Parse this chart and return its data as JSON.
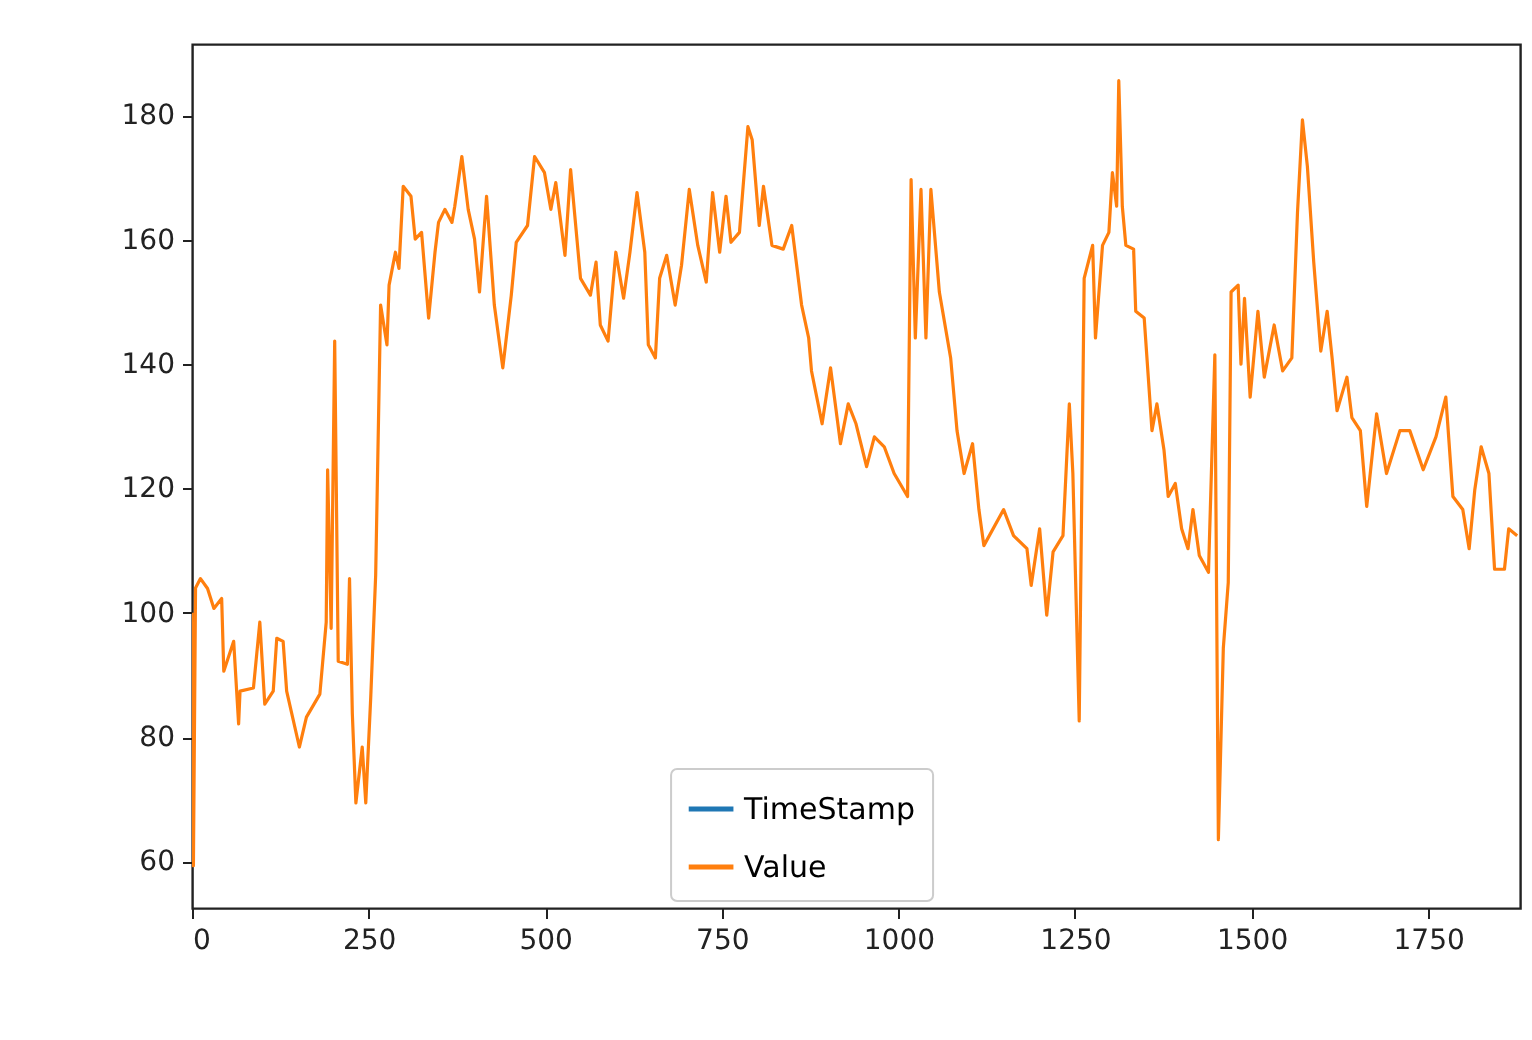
{
  "chart_data": {
    "type": "line",
    "legend": "bottom",
    "xlim": [
      0,
      1880
    ],
    "ylim": [
      52.5,
      191.5
    ],
    "xticks": [
      0,
      250,
      500,
      750,
      1000,
      1250,
      1500,
      1750
    ],
    "yticks": [
      60,
      80,
      100,
      120,
      140,
      160,
      180
    ],
    "series": [
      {
        "name": "TimeStamp",
        "color": "#1f77b4"
      },
      {
        "name": "Value",
        "color": "#ff7f0e",
        "x": [
          0,
          2,
          5,
          12,
          22,
          31,
          42,
          45,
          59,
          66,
          68,
          87,
          96,
          103,
          115,
          120,
          129,
          134,
          152,
          162,
          181,
          190,
          192,
          197,
          202,
          207,
          220,
          223,
          227,
          232,
          241,
          246,
          253,
          260,
          267,
          276,
          279,
          288,
          293,
          299,
          310,
          316,
          325,
          335,
          344,
          349,
          358,
          368,
          372,
          382,
          391,
          400,
          407,
          417,
          428,
          440,
          452,
          459,
          475,
          485,
          499,
          508,
          515,
          528,
          536,
          550,
          564,
          572,
          578,
          589,
          600,
          611,
          620,
          630,
          641,
          646,
          656,
          662,
          672,
          684,
          693,
          704,
          716,
          728,
          737,
          747,
          756,
          763,
          775,
          787,
          793,
          803,
          809,
          821,
          837,
          849,
          863,
          873,
          877,
          892,
          904,
          918,
          929,
          940,
          955,
          966,
          980,
          994,
          1013,
          1018,
          1024,
          1032,
          1039,
          1046,
          1058,
          1074,
          1083,
          1093,
          1105,
          1114,
          1121,
          1149,
          1163,
          1182,
          1188,
          1200,
          1210,
          1219,
          1233,
          1242,
          1247,
          1256,
          1263,
          1275,
          1279,
          1289,
          1298,
          1303,
          1309,
          1312,
          1317,
          1322,
          1333,
          1336,
          1348,
          1359,
          1366,
          1376,
          1382,
          1392,
          1401,
          1410,
          1417,
          1426,
          1439,
          1448,
          1453,
          1460,
          1467,
          1471,
          1481,
          1485,
          1490,
          1498,
          1509,
          1518,
          1532,
          1544,
          1557,
          1565,
          1572,
          1579,
          1588,
          1598,
          1607,
          1614,
          1621,
          1635,
          1642,
          1654,
          1663,
          1677,
          1691,
          1710,
          1724,
          1743,
          1761,
          1775,
          1785,
          1799,
          1808,
          1816,
          1825,
          1836,
          1844,
          1858,
          1864,
          1876
        ],
        "values": [
          100,
          59.3,
          104,
          105.5,
          103.9,
          100.7,
          102.3,
          90.6,
          95.4,
          82.1,
          87.4,
          87.9,
          98.5,
          85.3,
          87.4,
          95.9,
          95.4,
          87.4,
          78.4,
          83.2,
          86.9,
          98.5,
          123,
          97.5,
          143.7,
          92.2,
          91.7,
          105.5,
          83.7,
          69.4,
          78.4,
          69.4,
          86.3,
          106,
          149.5,
          143.1,
          152.7,
          158,
          155.4,
          168.6,
          167,
          160.1,
          161.2,
          147.4,
          158,
          162.8,
          164.9,
          162.8,
          165.4,
          173.4,
          164.9,
          160.1,
          151.6,
          167,
          149.5,
          139.4,
          151.1,
          159.6,
          162.3,
          173.4,
          170.8,
          164.9,
          169.2,
          157.5,
          171.3,
          153.8,
          151.1,
          156.4,
          146.3,
          143.7,
          158,
          150.6,
          158,
          167.6,
          158,
          143.1,
          141,
          153.8,
          157.5,
          149.5,
          155.9,
          168.1,
          159.1,
          153.2,
          167.6,
          158,
          167,
          159.6,
          161.2,
          178.2,
          176.1,
          162.3,
          168.6,
          159.1,
          158.5,
          162.3,
          149.5,
          144.2,
          138.9,
          130.4,
          139.4,
          127.2,
          133.6,
          130.4,
          123.5,
          128.3,
          126.7,
          122.4,
          118.7,
          169.7,
          144.2,
          168.1,
          144.2,
          168.1,
          151.6,
          141,
          129.3,
          122.4,
          127.2,
          116.6,
          110.8,
          116.6,
          112.4,
          110.3,
          104.4,
          113.5,
          99.6,
          109.8,
          112.4,
          133.6,
          122.4,
          82.6,
          153.8,
          159.1,
          144.2,
          159.1,
          161.2,
          170.8,
          165.4,
          185.6,
          165.4,
          159.1,
          158.5,
          148.5,
          147.4,
          129.3,
          133.6,
          126.2,
          118.7,
          120.8,
          113.5,
          110.3,
          116.6,
          109.2,
          106.5,
          141.5,
          63.5,
          94.3,
          104.9,
          151.6,
          152.7,
          140,
          150.6,
          134.7,
          148.5,
          137.9,
          146.3,
          138.9,
          141,
          164.4,
          179.3,
          171.8,
          156.4,
          142.1,
          148.5,
          141,
          132.5,
          137.9,
          131.4,
          129.3,
          117.1,
          132,
          122.4,
          129.3,
          129.3,
          123,
          128.3,
          134.7,
          118.7,
          116.6,
          110.3,
          119.8,
          126.7,
          122.4,
          107,
          107,
          113.5,
          112.4
        ]
      }
    ]
  }
}
